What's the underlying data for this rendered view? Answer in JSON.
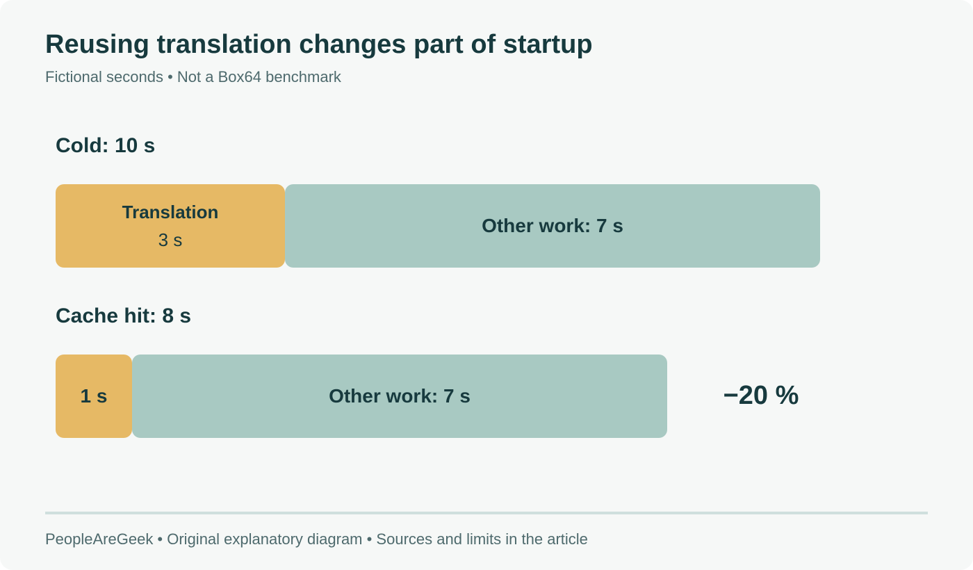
{
  "header": {
    "title": "Reusing translation changes part of startup",
    "subtitle": "Fictional seconds • Not a Box64 benchmark"
  },
  "rows": [
    {
      "label": "Cold: 10 s",
      "total_seconds": 10,
      "segments": [
        {
          "kind": "translation",
          "title": "Translation",
          "value_label": "3 s",
          "seconds": 3
        },
        {
          "kind": "other",
          "title": "Other work: 7 s",
          "seconds": 7
        }
      ]
    },
    {
      "label": "Cache hit: 8 s",
      "total_seconds": 8,
      "segments": [
        {
          "kind": "translation",
          "title": "1 s",
          "seconds": 1
        },
        {
          "kind": "other",
          "title": "Other work: 7 s",
          "seconds": 7
        }
      ]
    }
  ],
  "delta": "−20 %",
  "footer": "PeopleAreGeek • Original explanatory diagram • Sources and limits in the article",
  "colors": {
    "background": "#f6f8f7",
    "translation": "#e6b965",
    "other_work": "#a8c9c2",
    "text": "#173a3e",
    "muted_text": "#4e6a6d",
    "divider": "#cfdfdd"
  }
}
